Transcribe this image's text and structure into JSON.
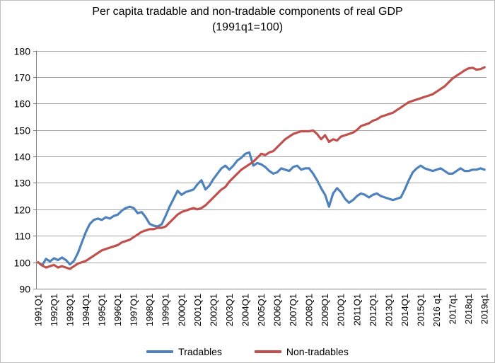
{
  "title": {
    "line1": "Per capita tradable and non-tradable components of  real GDP",
    "line2": "(1991q1=100)"
  },
  "colors": {
    "tradables": "#4f81bd",
    "non_tradables": "#c0504d",
    "gridline": "#a6a6a6",
    "axis_line": "#808080",
    "tick_text": "#000000",
    "chart_border": "#bfbfbf"
  },
  "legend": {
    "items": [
      {
        "label": "Tradables",
        "color_key": "tradables"
      },
      {
        "label": "Non-tradables",
        "color_key": "non_tradables"
      }
    ]
  },
  "chart_data": {
    "type": "line",
    "title": "Per capita tradable and non-tradable components of real GDP (1991q1=100)",
    "x_start": "1991Q1",
    "x_end": "2019q1",
    "x_points": 113,
    "x_tick_every": 4,
    "x_tick_labels": [
      "1991Q1",
      "1992Q1",
      "1993Q1",
      "1994Q1",
      "1995Q1",
      "1996Q1",
      "1997Q1",
      "1998Q1",
      "1999Q1",
      "2000Q1",
      "2001Q1",
      "2002Q1",
      "2003Q1",
      "2004Q1",
      "2005Q1",
      "2006Q1",
      "2007Q1",
      "2008Q1",
      "2009Q1",
      "2010Q1",
      "2011Q1",
      "2012Q1",
      "2013Q1",
      "2014Q1",
      "2015Q1",
      "2016 q1",
      "2017q1",
      "2018q1",
      "2019q1"
    ],
    "ylim": [
      90,
      180
    ],
    "y_ticks": [
      90,
      100,
      110,
      120,
      130,
      140,
      150,
      160,
      170,
      180
    ],
    "grid": true,
    "legend_position": "bottom",
    "series": [
      {
        "name": "Tradables",
        "color": "#4f81bd",
        "values": [
          100,
          98.8,
          101.3,
          100.3,
          101.5,
          100.8,
          101.8,
          100.8,
          99.2,
          100.5,
          103.5,
          107.5,
          111.5,
          114.5,
          116,
          116.5,
          116,
          117,
          116.5,
          117.5,
          118,
          119.5,
          120.5,
          121,
          120.5,
          118.5,
          119,
          117,
          114.5,
          113.8,
          113.5,
          114.3,
          117.5,
          121,
          124,
          127,
          125.5,
          126.5,
          127,
          127.5,
          129.5,
          131,
          127.5,
          129,
          131.5,
          133.5,
          135.5,
          136.5,
          135,
          136.5,
          138.5,
          139.5,
          141,
          141.5,
          136.5,
          137.5,
          137,
          136,
          134.5,
          133.5,
          134,
          135.5,
          135,
          134.5,
          136,
          136.5,
          135,
          135.5,
          135.5,
          133.5,
          131,
          128,
          125.5,
          121,
          126,
          128,
          126.5,
          124,
          122.5,
          123.5,
          125,
          126,
          125.5,
          124.5,
          125.5,
          126,
          125,
          124.5,
          124,
          123.5,
          124,
          124.5,
          127.5,
          131,
          134,
          135.5,
          136.5,
          135.5,
          135,
          134.5,
          135,
          135.5,
          134.5,
          133.5,
          133.5,
          134.5,
          135.5,
          134.5,
          134.5,
          135,
          135,
          135.5,
          135
        ]
      },
      {
        "name": "Non-tradables",
        "color": "#c0504d",
        "values": [
          100,
          98.8,
          98,
          98.5,
          99,
          98,
          98.5,
          98,
          97.5,
          98.5,
          99.5,
          100,
          100.5,
          101.5,
          102.5,
          103.5,
          104.5,
          105,
          105.5,
          106,
          106.5,
          107.5,
          108,
          108.5,
          109.5,
          110.5,
          111.5,
          112,
          112.5,
          112.5,
          113,
          113,
          113.5,
          115,
          116.5,
          118,
          119,
          119.5,
          120,
          120.5,
          120,
          120.5,
          121.5,
          123,
          124.5,
          126,
          127.5,
          128.5,
          130.5,
          132,
          133.5,
          135,
          136,
          137,
          138,
          139.5,
          141,
          140.5,
          141.5,
          142,
          143.5,
          145,
          146.5,
          147.5,
          148.5,
          149,
          149.5,
          149.5,
          149.5,
          149.8,
          148.5,
          146.5,
          148,
          145.5,
          146.5,
          146,
          147.5,
          148,
          148.5,
          149,
          150,
          151.5,
          152,
          152.5,
          153.5,
          154,
          155,
          155.5,
          156,
          156.5,
          157.5,
          158.5,
          159.5,
          160.5,
          161,
          161.5,
          162,
          162.5,
          163,
          163.5,
          164.5,
          165.5,
          166.5,
          168,
          169.5,
          170.5,
          171.5,
          172.5,
          173.3,
          173.5,
          172.8,
          173,
          173.7
        ]
      }
    ]
  }
}
